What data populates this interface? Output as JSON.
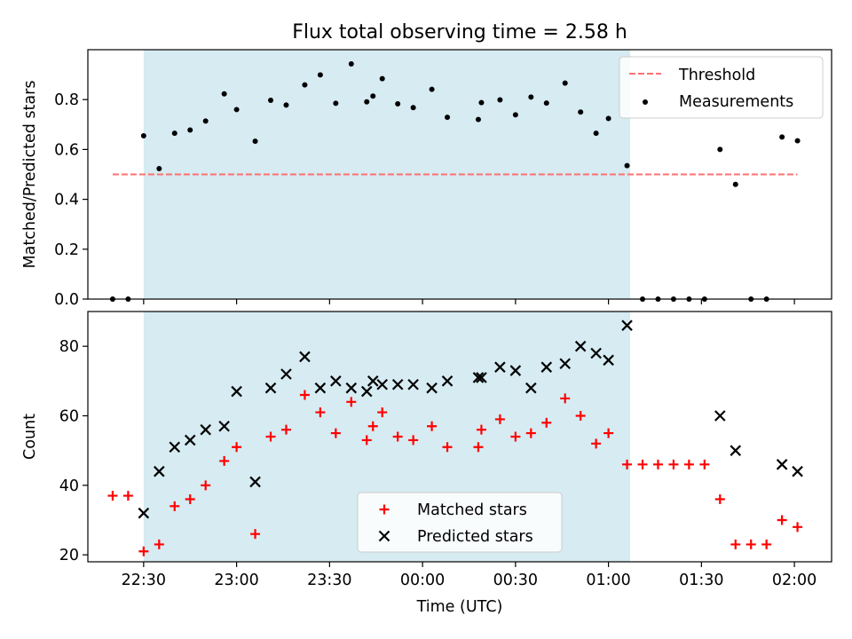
{
  "chart_data": [
    {
      "type": "scatter",
      "title": "Flux total observing time = 2.58 h",
      "xlabel": "",
      "ylabel": "Matched/Predicted stars",
      "ylim": [
        0,
        1.0
      ],
      "yticks": [
        "0.0",
        "0.2",
        "0.4",
        "0.6",
        "0.8"
      ],
      "xlim": [
        "22:12",
        "02:12"
      ],
      "observing_window": [
        "22:30",
        "01:07"
      ],
      "threshold": {
        "name": "Threshold",
        "value": 0.5,
        "color": "#ff6f6f",
        "style": "dashed"
      },
      "series": [
        {
          "name": "Measurements",
          "color": "#000000",
          "points": [
            [
              "22:20",
              0.0
            ],
            [
              "22:25",
              0.0
            ],
            [
              "22:30",
              0.655
            ],
            [
              "22:35",
              0.523
            ],
            [
              "22:40",
              0.665
            ],
            [
              "22:45",
              0.678
            ],
            [
              "22:50",
              0.714
            ],
            [
              "22:56",
              0.823
            ],
            [
              "23:00",
              0.76
            ],
            [
              "23:06",
              0.633
            ],
            [
              "23:11",
              0.797
            ],
            [
              "23:16",
              0.778
            ],
            [
              "23:22",
              0.859
            ],
            [
              "23:27",
              0.899
            ],
            [
              "23:32",
              0.785
            ],
            [
              "23:37",
              0.943
            ],
            [
              "23:42",
              0.791
            ],
            [
              "23:44",
              0.814
            ],
            [
              "23:47",
              0.884
            ],
            [
              "23:52",
              0.783
            ],
            [
              "23:57",
              0.768
            ],
            [
              "00:03",
              0.841
            ],
            [
              "00:08",
              0.729
            ],
            [
              "00:18",
              0.72
            ],
            [
              "00:19",
              0.788
            ],
            [
              "00:25",
              0.799
            ],
            [
              "00:30",
              0.739
            ],
            [
              "00:35",
              0.81
            ],
            [
              "00:40",
              0.786
            ],
            [
              "00:46",
              0.866
            ],
            [
              "00:51",
              0.75
            ],
            [
              "00:56",
              0.665
            ],
            [
              "01:00",
              0.724
            ],
            [
              "01:06",
              0.535
            ],
            [
              "01:11",
              0.0
            ],
            [
              "01:16",
              0.0
            ],
            [
              "01:21",
              0.0
            ],
            [
              "01:26",
              0.0
            ],
            [
              "01:31",
              0.0
            ],
            [
              "01:36",
              0.6
            ],
            [
              "01:41",
              0.46
            ],
            [
              "01:46",
              0.0
            ],
            [
              "01:51",
              0.0
            ],
            [
              "01:56",
              0.65
            ],
            [
              "02:01",
              0.635
            ]
          ]
        }
      ]
    },
    {
      "type": "scatter",
      "xlabel": "Time (UTC)",
      "ylabel": "Count",
      "ylim": [
        18,
        90
      ],
      "yticks": [
        "20",
        "40",
        "60",
        "80"
      ],
      "xticks": [
        "22:30",
        "23:00",
        "23:30",
        "00:00",
        "00:30",
        "01:00",
        "01:30",
        "02:00"
      ],
      "xlim": [
        "22:12",
        "02:12"
      ],
      "observing_window": [
        "22:30",
        "01:07"
      ],
      "series": [
        {
          "name": "Matched stars",
          "marker": "plus",
          "color": "#ff0000",
          "points": [
            [
              "22:20",
              37
            ],
            [
              "22:25",
              37
            ],
            [
              "22:30",
              21
            ],
            [
              "22:35",
              23
            ],
            [
              "22:40",
              34
            ],
            [
              "22:45",
              36
            ],
            [
              "22:50",
              40
            ],
            [
              "22:56",
              47
            ],
            [
              "23:00",
              51
            ],
            [
              "23:06",
              26
            ],
            [
              "23:11",
              54
            ],
            [
              "23:16",
              56
            ],
            [
              "23:22",
              66
            ],
            [
              "23:27",
              61
            ],
            [
              "23:32",
              55
            ],
            [
              "23:37",
              64
            ],
            [
              "23:42",
              53
            ],
            [
              "23:44",
              57
            ],
            [
              "23:47",
              61
            ],
            [
              "23:52",
              54
            ],
            [
              "23:57",
              53
            ],
            [
              "00:03",
              57
            ],
            [
              "00:08",
              51
            ],
            [
              "00:18",
              51
            ],
            [
              "00:19",
              56
            ],
            [
              "00:25",
              59
            ],
            [
              "00:30",
              54
            ],
            [
              "00:35",
              55
            ],
            [
              "00:40",
              58
            ],
            [
              "00:46",
              65
            ],
            [
              "00:51",
              60
            ],
            [
              "00:56",
              52
            ],
            [
              "01:00",
              55
            ],
            [
              "01:06",
              46
            ],
            [
              "01:11",
              46
            ],
            [
              "01:16",
              46
            ],
            [
              "01:21",
              46
            ],
            [
              "01:26",
              46
            ],
            [
              "01:31",
              46
            ],
            [
              "01:36",
              36
            ],
            [
              "01:41",
              23
            ],
            [
              "01:46",
              23
            ],
            [
              "01:51",
              23
            ],
            [
              "01:56",
              30
            ],
            [
              "02:01",
              28
            ]
          ]
        },
        {
          "name": "Predicted stars",
          "marker": "x",
          "color": "#000000",
          "points": [
            [
              "22:30",
              32
            ],
            [
              "22:35",
              44
            ],
            [
              "22:40",
              51
            ],
            [
              "22:45",
              53
            ],
            [
              "22:50",
              56
            ],
            [
              "22:56",
              57
            ],
            [
              "23:00",
              67
            ],
            [
              "23:06",
              41
            ],
            [
              "23:11",
              68
            ],
            [
              "23:16",
              72
            ],
            [
              "23:22",
              77
            ],
            [
              "23:27",
              68
            ],
            [
              "23:32",
              70
            ],
            [
              "23:37",
              68
            ],
            [
              "23:42",
              67
            ],
            [
              "23:44",
              70
            ],
            [
              "23:47",
              69
            ],
            [
              "23:52",
              69
            ],
            [
              "23:57",
              69
            ],
            [
              "00:03",
              68
            ],
            [
              "00:08",
              70
            ],
            [
              "00:18",
              71
            ],
            [
              "00:19",
              71
            ],
            [
              "00:25",
              74
            ],
            [
              "00:30",
              73
            ],
            [
              "00:35",
              68
            ],
            [
              "00:40",
              74
            ],
            [
              "00:46",
              75
            ],
            [
              "00:51",
              80
            ],
            [
              "00:56",
              78
            ],
            [
              "01:00",
              76
            ],
            [
              "01:06",
              86
            ],
            [
              "01:36",
              60
            ],
            [
              "01:41",
              50
            ],
            [
              "01:56",
              46
            ],
            [
              "02:01",
              44
            ]
          ]
        }
      ]
    }
  ]
}
